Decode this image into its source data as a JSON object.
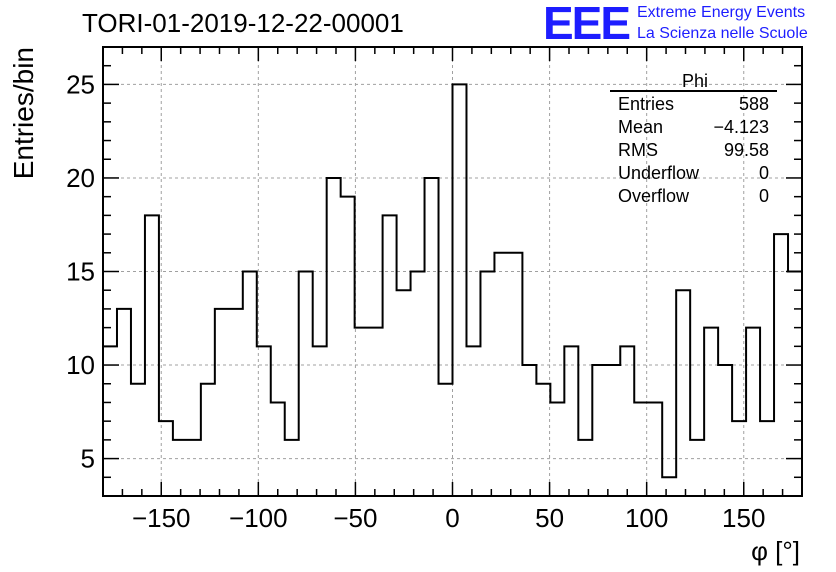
{
  "header": {
    "title": "TORI-01-2019-12-22-00001",
    "logo_text": "EEE",
    "logo_line_1": "Extreme Energy Events",
    "logo_line_2": "La Scienza nelle Scuole"
  },
  "stats_box": {
    "name": "Phi",
    "rows": [
      {
        "label": "Entries",
        "value": "588"
      },
      {
        "label": "Mean",
        "value": "−4.123"
      },
      {
        "label": "RMS",
        "value": "99.58"
      },
      {
        "label": "Underflow",
        "value": "0"
      },
      {
        "label": "Overflow",
        "value": "0"
      }
    ]
  },
  "colors": {
    "line": "#000000",
    "grid": "#a0a0a0",
    "logo": "#1d1dff"
  },
  "chart_data": {
    "type": "histogram",
    "title": "TORI-01-2019-12-22-00001",
    "xlabel": "φ [°]",
    "ylabel": "Entries/bin",
    "xlim": [
      -180,
      180
    ],
    "ylim": [
      3,
      27
    ],
    "grid": true,
    "bin_width": 7.2,
    "xticks": [
      -150,
      -100,
      -50,
      0,
      50,
      100,
      150
    ],
    "xtick_labels": [
      "−150",
      "−100",
      "−50",
      "0",
      "50",
      "100",
      "150"
    ],
    "yticks": [
      5,
      10,
      15,
      20,
      25
    ],
    "ytick_labels": [
      "5",
      "10",
      "15",
      "20",
      "25"
    ],
    "values": [
      11,
      13,
      9,
      18,
      7,
      6,
      6,
      9,
      13,
      13,
      15,
      11,
      8,
      6,
      15,
      11,
      20,
      19,
      12,
      12,
      18,
      14,
      15,
      20,
      9,
      25,
      11,
      15,
      16,
      16,
      10,
      9,
      8,
      11,
      6,
      10,
      10,
      11,
      8,
      8,
      4,
      14,
      6,
      12,
      10,
      7,
      12,
      7,
      17,
      15
    ]
  }
}
